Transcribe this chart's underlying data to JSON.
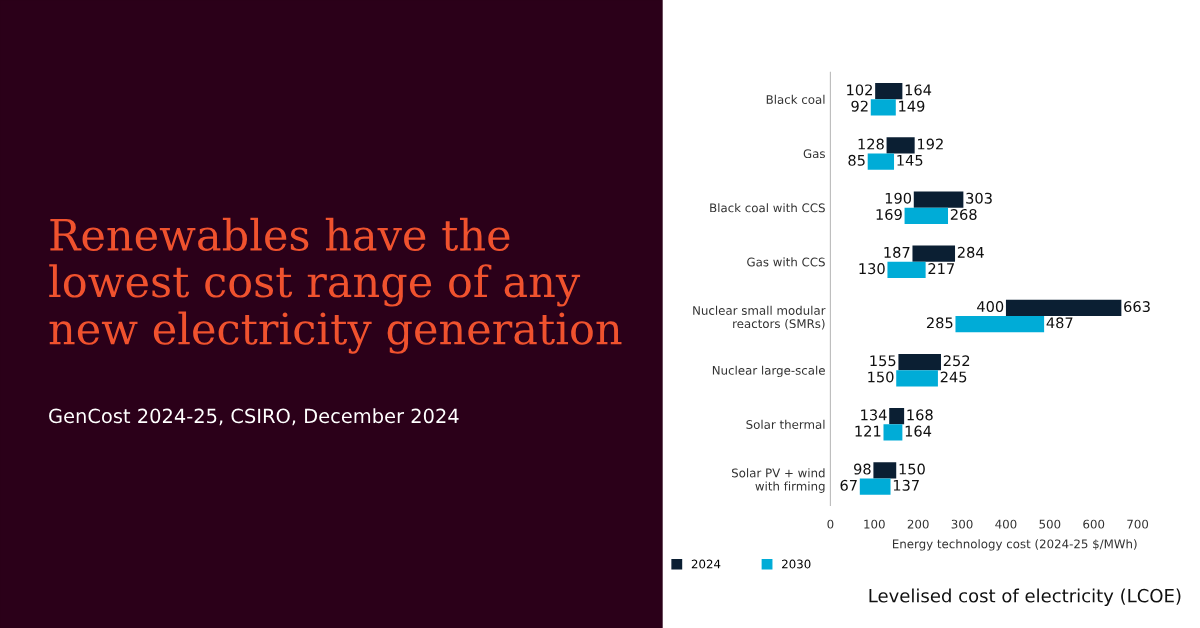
{
  "chart_data": {
    "type": "bar",
    "orientation": "horizontal",
    "title": "Renewables have the\nlowest cost range of any\nnew electricity generation",
    "subtitle": "GenCost 2024-25, CSIRO, December 2024",
    "xlabel": "Energy technology cost (2024-25 $/MWh)",
    "annotations": [
      "Levelised cost of electricity (LCOE)"
    ],
    "categories": [
      "Black coal",
      "Gas",
      "Black coal with CCS",
      "Gas with CCS",
      "Nuclear small modular\nreactors (SMRs)",
      "Nuclear large-scale",
      "Solar thermal",
      "Solar PV + wind\nwith firming"
    ],
    "series": [
      {
        "name": "2024",
        "color": "#0b1f33",
        "base": [
          102,
          128,
          190,
          187,
          400,
          155,
          134,
          98
        ],
        "values": [
          62,
          64,
          113,
          97,
          263,
          97,
          34,
          52
        ],
        "value_labels": [
          [
            "102",
            "164"
          ],
          [
            "128",
            "192"
          ],
          [
            "190",
            "303"
          ],
          [
            "187",
            "284"
          ],
          [
            "400",
            "663"
          ],
          [
            "155",
            "252"
          ],
          [
            "134",
            "168"
          ],
          [
            "98",
            "150"
          ]
        ]
      },
      {
        "name": "2030",
        "color": "#00acd7",
        "base": [
          92,
          85,
          169,
          130,
          285,
          150,
          121,
          67
        ],
        "values": [
          57,
          60,
          99,
          87,
          202,
          95,
          43,
          70
        ],
        "value_labels": [
          [
            "92",
            "149"
          ],
          [
            "85",
            "145"
          ],
          [
            "169",
            "268"
          ],
          [
            "130",
            "217"
          ],
          [
            "285",
            "487"
          ],
          [
            "150",
            "245"
          ],
          [
            "121",
            "164"
          ],
          [
            "67",
            "137"
          ]
        ]
      }
    ],
    "xlim": [
      0,
      700
    ],
    "xticks": [
      0,
      100,
      200,
      300,
      400,
      500,
      600,
      700
    ],
    "grid": false,
    "legend": "bottom left"
  }
}
